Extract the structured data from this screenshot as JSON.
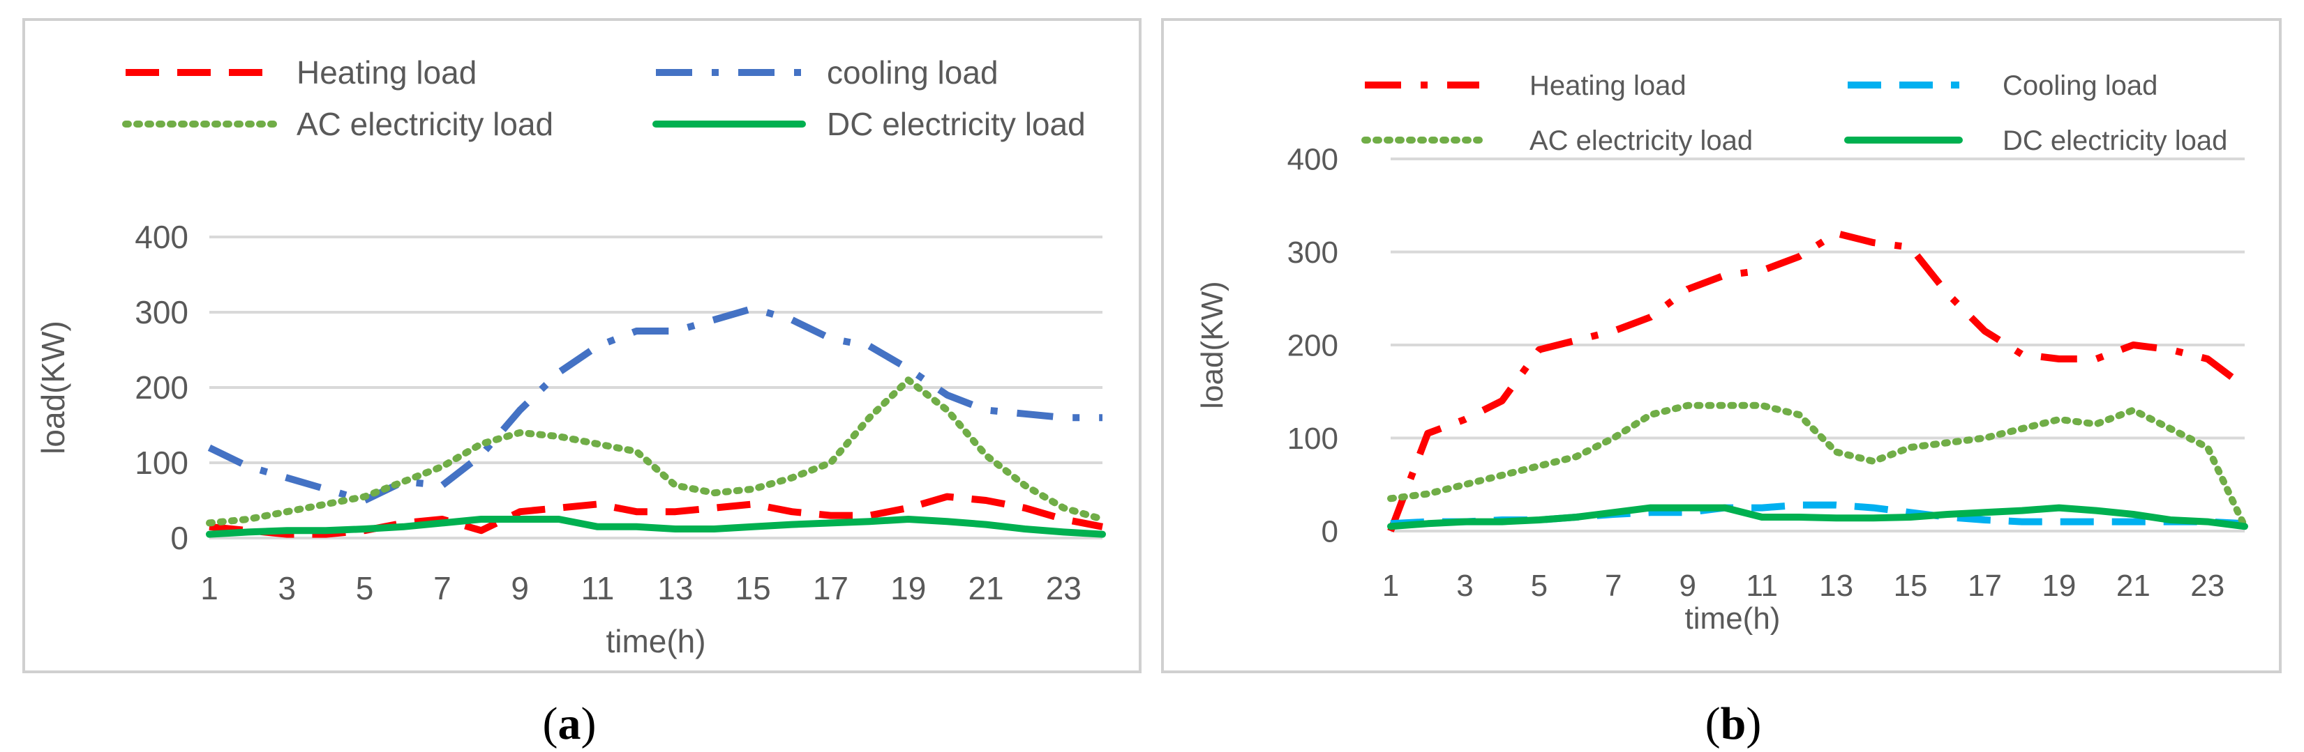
{
  "chart_data": [
    {
      "type": "line",
      "panel_label": "(a)",
      "panel_letter": "a",
      "xlabel": "time(h)",
      "ylabel": "load(KW)",
      "xlim": [
        1,
        24
      ],
      "ylim": [
        0,
        400
      ],
      "x_ticks": [
        "1",
        "3",
        "5",
        "7",
        "9",
        "11",
        "13",
        "15",
        "17",
        "19",
        "21",
        "23"
      ],
      "y_ticks": [
        "0",
        "100",
        "200",
        "300",
        "400"
      ],
      "grid": true,
      "legend_position": "top",
      "x": [
        1,
        2,
        3,
        4,
        5,
        6,
        7,
        8,
        9,
        10,
        11,
        12,
        13,
        14,
        15,
        16,
        17,
        18,
        19,
        20,
        21,
        22,
        23,
        24
      ],
      "series": [
        {
          "name": "Heating load",
          "color": "#ff0000",
          "style": "dash",
          "values": [
            15,
            10,
            5,
            5,
            10,
            20,
            25,
            10,
            35,
            40,
            45,
            35,
            35,
            40,
            45,
            35,
            30,
            30,
            40,
            55,
            50,
            40,
            25,
            15
          ]
        },
        {
          "name": "cooling load",
          "color": "#4472c4",
          "style": "dashdot",
          "values": [
            120,
            95,
            80,
            65,
            50,
            75,
            70,
            110,
            170,
            220,
            255,
            275,
            275,
            290,
            305,
            290,
            265,
            255,
            225,
            190,
            170,
            165,
            160,
            160
          ]
        },
        {
          "name": "AC electricity load",
          "color": "#70ad47",
          "style": "dot",
          "values": [
            20,
            25,
            35,
            45,
            55,
            75,
            95,
            125,
            140,
            135,
            125,
            115,
            70,
            60,
            65,
            80,
            100,
            160,
            210,
            170,
            110,
            70,
            40,
            25
          ]
        },
        {
          "name": "DC electricity load",
          "color": "#00b050",
          "style": "solid",
          "values": [
            5,
            8,
            10,
            10,
            12,
            15,
            20,
            25,
            25,
            25,
            15,
            15,
            12,
            12,
            15,
            18,
            20,
            22,
            25,
            22,
            18,
            12,
            8,
            5
          ]
        }
      ]
    },
    {
      "type": "line",
      "panel_label": "(b)",
      "panel_letter": "b",
      "xlabel": "time(h)",
      "ylabel": "load(KW)",
      "xlim": [
        1,
        24
      ],
      "ylim": [
        0,
        400
      ],
      "x_ticks": [
        "1",
        "3",
        "5",
        "7",
        "9",
        "11",
        "13",
        "15",
        "17",
        "19",
        "21",
        "23"
      ],
      "y_ticks": [
        "0",
        "100",
        "200",
        "300",
        "400"
      ],
      "grid": true,
      "legend_position": "top",
      "x": [
        1,
        2,
        3,
        4,
        5,
        6,
        7,
        8,
        9,
        10,
        11,
        12,
        13,
        14,
        15,
        16,
        17,
        18,
        19,
        20,
        21,
        22,
        23,
        24
      ],
      "series": [
        {
          "name": "Heating load",
          "color": "#ff0000",
          "style": "dashdot",
          "values": [
            0,
            105,
            120,
            140,
            195,
            205,
            215,
            230,
            260,
            275,
            280,
            295,
            320,
            310,
            305,
            255,
            215,
            190,
            185,
            185,
            200,
            195,
            185,
            155
          ]
        },
        {
          "name": "Cooling load",
          "color": "#00b0f0",
          "style": "dash",
          "values": [
            8,
            10,
            10,
            12,
            12,
            15,
            18,
            20,
            20,
            25,
            25,
            28,
            28,
            25,
            20,
            15,
            12,
            10,
            10,
            10,
            10,
            10,
            10,
            8
          ]
        },
        {
          "name": "AC electricity load",
          "color": "#70ad47",
          "style": "dot",
          "values": [
            35,
            40,
            50,
            60,
            70,
            80,
            100,
            125,
            135,
            135,
            135,
            125,
            85,
            75,
            90,
            95,
            100,
            110,
            120,
            115,
            130,
            110,
            90,
            5
          ]
        },
        {
          "name": "DC electricity load",
          "color": "#00b050",
          "style": "solid",
          "values": [
            5,
            8,
            10,
            10,
            12,
            15,
            20,
            25,
            25,
            25,
            15,
            15,
            14,
            14,
            15,
            18,
            20,
            22,
            25,
            22,
            18,
            12,
            10,
            5
          ]
        }
      ]
    }
  ]
}
